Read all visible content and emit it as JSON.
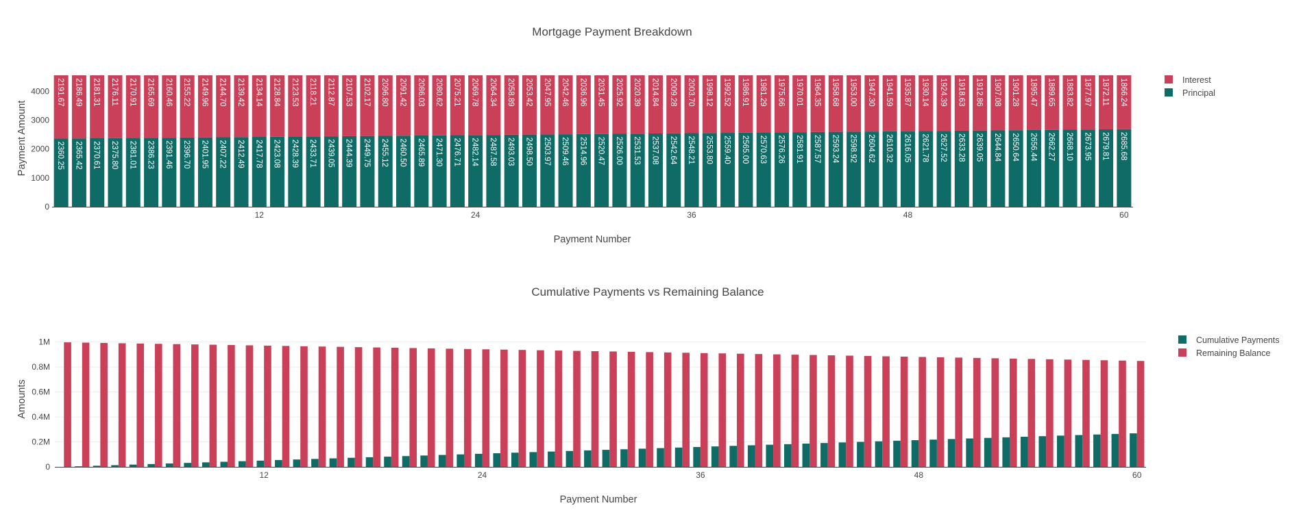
{
  "colors": {
    "principal": "#0f6b66",
    "interest": "#cb4059",
    "gridline": "#ececec",
    "axisline": "#444444"
  },
  "chart_data": [
    {
      "type": "bar",
      "barmode": "stack",
      "title": "Mortgage Payment Breakdown",
      "xlabel": "Payment Number",
      "ylabel": "Payment Amount",
      "xlim": [
        0.5,
        60.5
      ],
      "ylim": [
        0,
        4552
      ],
      "x_ticks": [
        12,
        24,
        36,
        48,
        60
      ],
      "y_ticks": [
        0,
        1000,
        2000,
        3000,
        4000
      ],
      "y_tick_labels": [
        "0",
        "1000",
        "2000",
        "3000",
        "4000"
      ],
      "grid": false,
      "legend_position": "top-right",
      "x": [
        1,
        2,
        3,
        4,
        5,
        6,
        7,
        8,
        9,
        10,
        11,
        12,
        13,
        14,
        15,
        16,
        17,
        18,
        19,
        20,
        21,
        22,
        23,
        24,
        25,
        26,
        27,
        28,
        29,
        30,
        31,
        32,
        33,
        34,
        35,
        36,
        37,
        38,
        39,
        40,
        41,
        42,
        43,
        44,
        45,
        46,
        47,
        48,
        49,
        50,
        51,
        52,
        53,
        54,
        55,
        56,
        57,
        58,
        59,
        60
      ],
      "series": [
        {
          "name": "Principal",
          "color": "#0f6b66",
          "values": [
            2360.25,
            2365.42,
            2370.61,
            2375.8,
            2381.01,
            2386.23,
            2391.46,
            2396.7,
            2401.95,
            2407.22,
            2412.49,
            2417.78,
            2423.08,
            2428.39,
            2433.71,
            2439.05,
            2444.39,
            2449.75,
            2455.12,
            2460.5,
            2465.89,
            2471.3,
            2476.71,
            2482.14,
            2487.58,
            2493.03,
            2498.5,
            2503.97,
            2509.46,
            2514.96,
            2520.47,
            2526.0,
            2531.53,
            2537.08,
            2542.64,
            2548.21,
            2553.8,
            2559.4,
            2565.0,
            2570.63,
            2576.26,
            2581.91,
            2587.57,
            2593.24,
            2598.92,
            2604.62,
            2610.32,
            2616.05,
            2621.78,
            2627.52,
            2633.28,
            2639.05,
            2644.84,
            2650.64,
            2656.44,
            2662.27,
            2668.1,
            2673.95,
            2679.81,
            2685.68
          ],
          "labels": [
            "2360.25",
            "2365.42",
            "2370.61",
            "2375.80",
            "2381.01",
            "2386.23",
            "2391.46",
            "2396.70",
            "2401.95",
            "2407.22",
            "2412.49",
            "2417.78",
            "2423.08",
            "2428.39",
            "2433.71",
            "2439.05",
            "2444.39",
            "2449.75",
            "2455.12",
            "2460.50",
            "2465.89",
            "2471.30",
            "2476.71",
            "2482.14",
            "2487.58",
            "2493.03",
            "2498.50",
            "2503.97",
            "2509.46",
            "2514.96",
            "2520.47",
            "2526.00",
            "2531.53",
            "2537.08",
            "2542.64",
            "2548.21",
            "2553.80",
            "2559.40",
            "2565.00",
            "2570.63",
            "2576.26",
            "2581.91",
            "2587.57",
            "2593.24",
            "2598.92",
            "2604.62",
            "2610.32",
            "2616.05",
            "2621.78",
            "2627.52",
            "2633.28",
            "2639.05",
            "2644.84",
            "2650.64",
            "2656.44",
            "2662.27",
            "2668.10",
            "2673.95",
            "2679.81",
            "2685.68"
          ]
        },
        {
          "name": "Interest",
          "color": "#cb4059",
          "values": [
            2191.67,
            2186.49,
            2181.31,
            2176.11,
            2170.91,
            2165.69,
            2160.46,
            2155.22,
            2149.96,
            2144.7,
            2139.42,
            2134.14,
            2128.84,
            2123.53,
            2118.21,
            2112.87,
            2107.53,
            2102.17,
            2096.8,
            2091.42,
            2086.03,
            2080.62,
            2075.21,
            2069.78,
            2064.34,
            2058.89,
            2053.42,
            2047.95,
            2042.46,
            2036.96,
            2031.45,
            2025.92,
            2020.39,
            2014.84,
            2009.28,
            2003.7,
            1998.12,
            1992.52,
            1986.91,
            1981.29,
            1975.66,
            1970.01,
            1964.35,
            1958.68,
            1953.0,
            1947.3,
            1941.59,
            1935.87,
            1930.14,
            1924.39,
            1918.63,
            1912.86,
            1907.08,
            1901.28,
            1895.47,
            1889.65,
            1883.82,
            1877.97,
            1872.11,
            1866.24
          ],
          "labels": [
            "2191.67",
            "2186.49",
            "2181.31",
            "2176.11",
            "2170.91",
            "2165.69",
            "2160.46",
            "2155.22",
            "2149.96",
            "2144.70",
            "2139.42",
            "2134.14",
            "2128.84",
            "2123.53",
            "2118.21",
            "2112.87",
            "2107.53",
            "2102.17",
            "2096.80",
            "2091.42",
            "2086.03",
            "2080.62",
            "2075.21",
            "2069.78",
            "2064.34",
            "2058.89",
            "2053.42",
            "2047.95",
            "2042.46",
            "2036.96",
            "2031.45",
            "2025.92",
            "2020.39",
            "2014.84",
            "2009.28",
            "2003.70",
            "1998.12",
            "1992.52",
            "1986.91",
            "1981.29",
            "1975.66",
            "1970.01",
            "1964.35",
            "1958.68",
            "1953.00",
            "1947.30",
            "1941.59",
            "1935.87",
            "1930.14",
            "1924.39",
            "1918.63",
            "1912.86",
            "1907.08",
            "1901.28",
            "1895.47",
            "1889.65",
            "1883.82",
            "1877.97",
            "1872.11",
            "1866.24"
          ]
        }
      ]
    },
    {
      "type": "bar",
      "barmode": "group",
      "title": "Cumulative Payments vs Remaining Balance",
      "xlabel": "Payment Number",
      "ylabel": "Amounts",
      "xlim": [
        0.5,
        60.5
      ],
      "ylim": [
        0,
        1053000
      ],
      "x_ticks": [
        12,
        24,
        36,
        48,
        60
      ],
      "y_ticks": [
        0,
        200000,
        400000,
        600000,
        800000,
        1000000
      ],
      "y_tick_labels": [
        "0",
        "0.2M",
        "0.4M",
        "0.6M",
        "0.8M",
        "1M"
      ],
      "grid": true,
      "legend_position": "top-right",
      "x": [
        1,
        2,
        3,
        4,
        5,
        6,
        7,
        8,
        9,
        10,
        11,
        12,
        13,
        14,
        15,
        16,
        17,
        18,
        19,
        20,
        21,
        22,
        23,
        24,
        25,
        26,
        27,
        28,
        29,
        30,
        31,
        32,
        33,
        34,
        35,
        36,
        37,
        38,
        39,
        40,
        41,
        42,
        43,
        44,
        45,
        46,
        47,
        48,
        49,
        50,
        51,
        52,
        53,
        54,
        55,
        56,
        57,
        58,
        59,
        60
      ],
      "series": [
        {
          "name": "Cumulative Payments",
          "color": "#0f6b66",
          "values": [
            0,
            4552,
            9104,
            13656,
            18208,
            22760,
            27312,
            31864,
            36416,
            40968,
            45520,
            50072,
            54624,
            59176,
            63728,
            68280,
            72832,
            77384,
            81936,
            86488,
            91040,
            95592,
            100144,
            104696,
            109248,
            113800,
            118352,
            122904,
            127456,
            132008,
            136560,
            141112,
            145664,
            150216,
            154768,
            159320,
            163872,
            168424,
            172976,
            177528,
            182080,
            186632,
            191184,
            195736,
            200288,
            204840,
            209392,
            213944,
            218496,
            223048,
            227600,
            232152,
            236704,
            241256,
            245808,
            250360,
            254912,
            259464,
            264016,
            268568
          ]
        },
        {
          "name": "Remaining Balance",
          "color": "#cb4059",
          "values": [
            997640,
            995274,
            992904,
            990528,
            988147,
            985761,
            983369,
            980973,
            978571,
            976164,
            973751,
            971333,
            968910,
            966482,
            964048,
            961609,
            959164,
            956715,
            954259,
            951799,
            949333,
            946862,
            944385,
            941903,
            939415,
            936922,
            934424,
            931920,
            929410,
            926895,
            924375,
            921849,
            919317,
            916780,
            914238,
            911689,
            909136,
            906576,
            904011,
            901441,
            898864,
            896283,
            893695,
            891102,
            888503,
            885898,
            883288,
            880672,
            878050,
            875423,
            872789,
            870150,
            867506,
            864855,
            862199,
            859536,
            856868,
            854194,
            851514,
            848829
          ]
        }
      ]
    }
  ]
}
